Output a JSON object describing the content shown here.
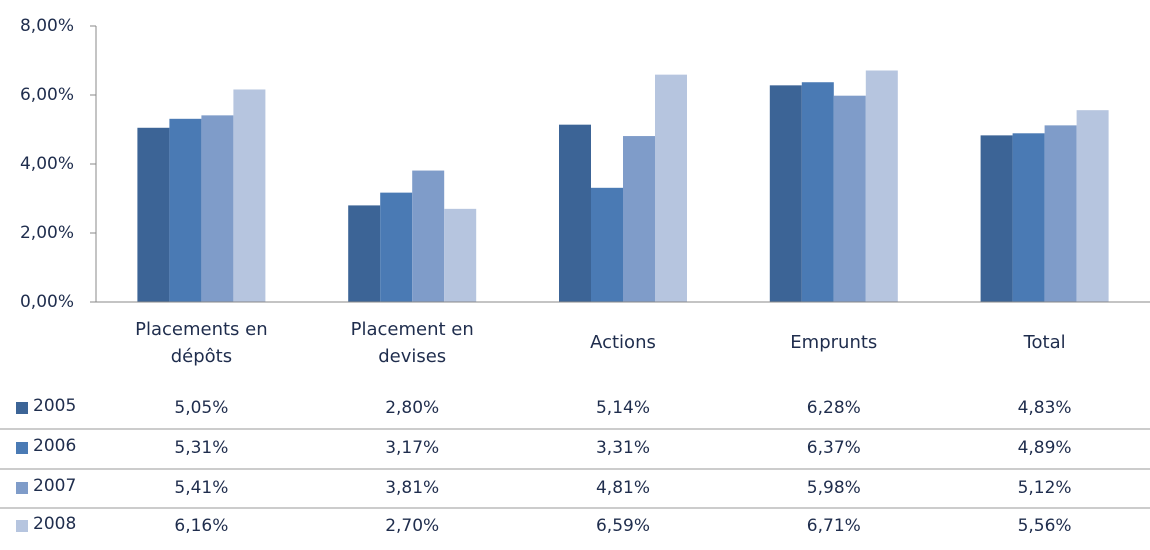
{
  "chart_data": {
    "type": "bar",
    "categories": [
      "Placements en dépôts",
      "Placement en devises",
      "Actions",
      "Emprunts",
      "Total"
    ],
    "series": [
      {
        "name": "2005",
        "color": "#3c6496",
        "values": [
          5.05,
          2.8,
          5.14,
          6.28,
          4.83
        ],
        "value_labels": [
          "5,05%",
          "2,80%",
          "5,14%",
          "6,28%",
          "4,83%"
        ]
      },
      {
        "name": "2006",
        "color": "#4a7ab4",
        "values": [
          5.31,
          3.17,
          3.31,
          6.37,
          4.89
        ],
        "value_labels": [
          "5,31%",
          "3,17%",
          "3,31%",
          "6,37%",
          "4,89%"
        ]
      },
      {
        "name": "2007",
        "color": "#7f9cc9",
        "values": [
          5.41,
          3.81,
          4.81,
          5.98,
          5.12
        ],
        "value_labels": [
          "5,41%",
          "3,81%",
          "4,81%",
          "5,98%",
          "5,12%"
        ]
      },
      {
        "name": "2008",
        "color": "#b6c5df",
        "values": [
          6.16,
          2.7,
          6.59,
          6.71,
          5.56
        ],
        "value_labels": [
          "6,16%",
          "2,70%",
          "6,59%",
          "6,71%",
          "5,56%"
        ]
      }
    ],
    "ylim": [
      0,
      8
    ],
    "yticks": [
      {
        "value": 0,
        "label": "0,00%"
      },
      {
        "value": 2,
        "label": "2,00%"
      },
      {
        "value": 4,
        "label": "4,00%"
      },
      {
        "value": 6,
        "label": "6,00%"
      },
      {
        "value": 8,
        "label": "8,00%"
      }
    ]
  }
}
